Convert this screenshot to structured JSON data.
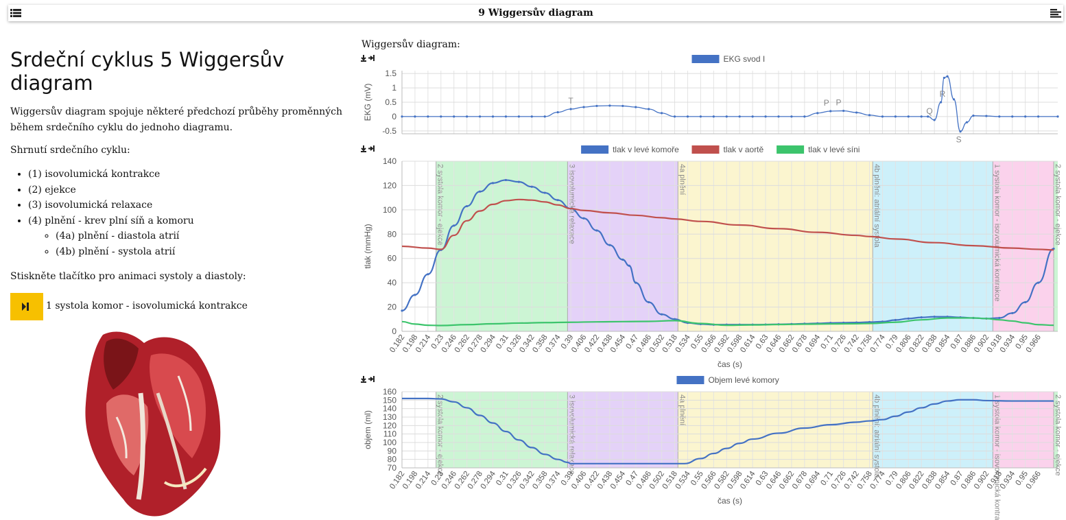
{
  "topbar": {
    "title": "9 Wiggersův diagram",
    "left_icon": "list-icon",
    "right_icon": "menu-lines-icon"
  },
  "left": {
    "heading": "Srdeční cyklus 5 Wiggersův diagram",
    "intro": "Wiggersův diagram spojuje některé předchozí průběhy proměnných během srdečního cyklu do jednoho diagramu.",
    "summary_label": "Shrnutí srdečního cyklu:",
    "phases": [
      "(1) isovolumická kontrakce",
      "(2) ejekce",
      "(3) isovolumická relaxace",
      "(4) plnění - krev plní síň a komoru"
    ],
    "subphases": [
      "(4a) plnění - diastola atrií",
      "(4b) plnění - systola atrií"
    ],
    "prompt": "Stiskněte tlačítko pro animaci systoly a diastoly:",
    "play_label": "1 systola komor - isovolumická kontrakce"
  },
  "section_title": "Wiggersův diagram:",
  "time_ticks": [
    "0.182",
    "0.198",
    "0.214",
    "0.23",
    "0.246",
    "0.262",
    "0.278",
    "0.294",
    "0.31",
    "0.326",
    "0.342",
    "0.358",
    "0.374",
    "0.39",
    "0.406",
    "0.422",
    "0.438",
    "0.454",
    "0.47",
    "0.486",
    "0.502",
    "0.518",
    "0.534",
    "0.55",
    "0.566",
    "0.582",
    "0.598",
    "0.614",
    "0.63",
    "0.646",
    "0.662",
    "0.678",
    "0.694",
    "0.71",
    "0.726",
    "0.742",
    "0.758",
    "0.774",
    "0.79",
    "0.806",
    "0.822",
    "0.838",
    "0.854",
    "0.87",
    "0.886",
    "0.902",
    "0.918",
    "0.934",
    "0.95",
    "0.966"
  ],
  "phase_bands": [
    {
      "label": "2 systola komor - ejekce",
      "start": 0.224,
      "end": 0.386,
      "color": "#ccf5d4"
    },
    {
      "label": "3 isovolumická relaxace",
      "start": 0.386,
      "end": 0.522,
      "color": "#e4d2f8"
    },
    {
      "label": "4a plnění",
      "start": 0.522,
      "end": 0.762,
      "color": "#fbf5cf"
    },
    {
      "label": "4b plnění: atriální systola",
      "start": 0.762,
      "end": 0.91,
      "color": "#cdf0fa"
    },
    {
      "label": "1 systola komor - isovolumická kontrakce",
      "start": 0.91,
      "end": 0.985,
      "color": "#fbd2ec"
    },
    {
      "label": "2 systola komor - ejekce",
      "start": 0.985,
      "end": 0.99,
      "color": "#ccf5d4"
    }
  ],
  "chart_data": [
    {
      "type": "line",
      "legend": [
        "EKG svod I"
      ],
      "ylabel": "EKG (mV)",
      "ylim": [
        -0.6,
        1.6
      ],
      "yticks": [
        1.5,
        1.0,
        0.5,
        0,
        -0.5
      ],
      "annotations": [
        {
          "text": "T",
          "x": 0.39
        },
        {
          "text": "P",
          "x": 0.705
        },
        {
          "text": "P",
          "x": 0.72
        },
        {
          "text": "Q",
          "x": 0.832
        },
        {
          "text": "R",
          "x": 0.848
        },
        {
          "text": "S",
          "x": 0.868
        }
      ],
      "series": [
        {
          "name": "EKG svod I",
          "color": "#4472c4",
          "x": [
            0.182,
            0.198,
            0.214,
            0.23,
            0.246,
            0.262,
            0.278,
            0.294,
            0.31,
            0.326,
            0.342,
            0.358,
            0.374,
            0.39,
            0.406,
            0.422,
            0.438,
            0.454,
            0.47,
            0.486,
            0.502,
            0.518,
            0.534,
            0.55,
            0.566,
            0.582,
            0.598,
            0.614,
            0.63,
            0.646,
            0.662,
            0.678,
            0.694,
            0.71,
            0.726,
            0.742,
            0.758,
            0.774,
            0.79,
            0.806,
            0.822,
            0.83,
            0.838,
            0.846,
            0.85,
            0.854,
            0.862,
            0.87,
            0.878,
            0.886,
            0.902,
            0.918,
            0.934,
            0.95,
            0.966,
            0.99
          ],
          "y": [
            0,
            0,
            0,
            0,
            0,
            0,
            0,
            0,
            0,
            0,
            0,
            0,
            0.15,
            0.26,
            0.33,
            0.37,
            0.38,
            0.37,
            0.33,
            0.26,
            0.12,
            0,
            0,
            0,
            0,
            0,
            0,
            0,
            0,
            0,
            0,
            0,
            0.12,
            0.19,
            0.2,
            0.14,
            0.05,
            0,
            0,
            0,
            0,
            0,
            -0.12,
            0.5,
            1.35,
            1.4,
            0.6,
            -0.52,
            -0.2,
            0.03,
            0.02,
            0,
            0,
            0,
            0,
            0
          ]
        }
      ]
    },
    {
      "type": "line",
      "legend": [
        "tlak v levé komoře",
        "tlak v aortě",
        "tlak v levé síni"
      ],
      "xlabel": "čas (s)",
      "ylabel": "tlak (mmHg)",
      "ylim": [
        0,
        140
      ],
      "yticks": [
        0,
        20,
        40,
        60,
        80,
        100,
        120,
        140
      ],
      "series": [
        {
          "name": "tlak v levé komoře",
          "color": "#4472c4",
          "x": [
            0.182,
            0.198,
            0.214,
            0.23,
            0.246,
            0.262,
            0.278,
            0.294,
            0.31,
            0.326,
            0.342,
            0.358,
            0.374,
            0.39,
            0.406,
            0.422,
            0.438,
            0.454,
            0.462,
            0.47,
            0.486,
            0.502,
            0.518,
            0.534,
            0.55,
            0.566,
            0.582,
            0.598,
            0.614,
            0.63,
            0.646,
            0.662,
            0.678,
            0.694,
            0.71,
            0.726,
            0.742,
            0.758,
            0.774,
            0.79,
            0.806,
            0.822,
            0.838,
            0.854,
            0.87,
            0.886,
            0.902,
            0.918,
            0.934,
            0.95,
            0.966,
            0.985
          ],
          "y": [
            17,
            30,
            47,
            67,
            87,
            103,
            115,
            122,
            124.5,
            123,
            119,
            114,
            108,
            101,
            93,
            83,
            71,
            59,
            54,
            40,
            24,
            14,
            10,
            7,
            6,
            5.5,
            5.5,
            5.5,
            5.5,
            5.6,
            5.8,
            6,
            6.3,
            6.6,
            6.9,
            7.1,
            7.3,
            7.6,
            8,
            9.3,
            10.5,
            11.5,
            12,
            12,
            11.5,
            11,
            10.5,
            11,
            15,
            24,
            40,
            68
          ]
        },
        {
          "name": "tlak v aortě",
          "color": "#c0504d",
          "x": [
            0.182,
            0.214,
            0.23,
            0.246,
            0.262,
            0.278,
            0.294,
            0.31,
            0.326,
            0.342,
            0.358,
            0.374,
            0.39,
            0.406,
            0.438,
            0.47,
            0.502,
            0.518,
            0.55,
            0.598,
            0.646,
            0.694,
            0.742,
            0.758,
            0.79,
            0.838,
            0.886,
            0.934,
            0.966,
            0.985
          ],
          "y": [
            70,
            68.5,
            67.5,
            79,
            91,
            99,
            104.5,
            107.5,
            108.5,
            108,
            106.5,
            104,
            101,
            99.5,
            97.5,
            95.5,
            93.5,
            92.5,
            90.5,
            87.5,
            84.5,
            81.5,
            79,
            78,
            76,
            73,
            70.5,
            68.5,
            67.5,
            67
          ]
        },
        {
          "name": "tlak v levé síni",
          "color": "#3cc46c",
          "x": [
            0.182,
            0.198,
            0.214,
            0.23,
            0.262,
            0.294,
            0.326,
            0.358,
            0.39,
            0.422,
            0.454,
            0.486,
            0.518,
            0.55,
            0.582,
            0.614,
            0.646,
            0.678,
            0.71,
            0.742,
            0.758,
            0.79,
            0.822,
            0.854,
            0.886,
            0.902,
            0.918,
            0.934,
            0.95,
            0.966,
            0.985
          ],
          "y": [
            8,
            6,
            5,
            4.8,
            5.5,
            6.2,
            6.8,
            7.2,
            7.5,
            7.8,
            8,
            8.2,
            8.8,
            6.5,
            5,
            5.3,
            5.6,
            5.9,
            6.1,
            6.3,
            6.5,
            7.5,
            9.5,
            11,
            11,
            10.5,
            9.5,
            8.5,
            7,
            5.5,
            5
          ]
        }
      ]
    },
    {
      "type": "line",
      "legend": [
        "Objem levé komory"
      ],
      "xlabel": "čas (s)",
      "ylabel": "objem (ml)",
      "ylim": [
        70,
        160
      ],
      "yticks": [
        70,
        80,
        90,
        100,
        110,
        120,
        130,
        140,
        150,
        160
      ],
      "series": [
        {
          "name": "Objem levé komory",
          "color": "#4472c4",
          "x": [
            0.182,
            0.214,
            0.23,
            0.246,
            0.262,
            0.278,
            0.294,
            0.31,
            0.326,
            0.342,
            0.358,
            0.374,
            0.386,
            0.39,
            0.422,
            0.454,
            0.486,
            0.518,
            0.53,
            0.55,
            0.566,
            0.582,
            0.598,
            0.614,
            0.646,
            0.678,
            0.71,
            0.742,
            0.758,
            0.774,
            0.79,
            0.806,
            0.822,
            0.838,
            0.854,
            0.87,
            0.886,
            0.902,
            0.934,
            0.966,
            0.985
          ],
          "y": [
            152,
            152,
            151.5,
            148,
            141,
            132,
            123,
            113,
            103,
            94,
            86,
            80,
            76.5,
            75,
            75,
            75,
            75,
            75,
            75,
            81,
            87,
            93,
            99,
            104,
            111,
            117,
            121,
            124,
            125.5,
            127,
            131,
            136,
            141,
            145.5,
            149,
            150.5,
            150.5,
            149.5,
            149,
            149,
            149
          ]
        }
      ]
    }
  ]
}
